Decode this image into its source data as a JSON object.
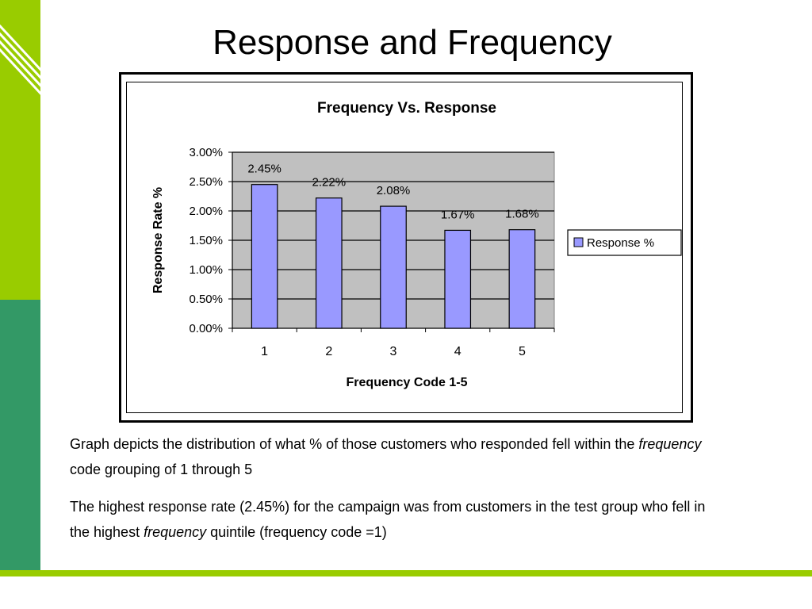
{
  "slide": {
    "title": "Response and Frequency",
    "paragraphs": [
      {
        "before": "Graph depicts the distribution of what % of those customers who responded fell within the ",
        "italic": "frequency",
        "after": " code grouping of 1 through 5"
      },
      {
        "before": "The highest response rate (2.45%) for the campaign was from customers in the test group who fell in the highest ",
        "italic": "frequency",
        "after": " quintile (frequency code =1)"
      }
    ]
  },
  "theme": {
    "side_green": "#99cc00",
    "side_teal": "#339966",
    "plot_bg": "#c0c0c0",
    "bar_fill": "#9999ff"
  },
  "chart_data": {
    "type": "bar",
    "title": "Frequency Vs. Response",
    "xlabel": "Frequency Code 1-5",
    "ylabel": "Response Rate %",
    "categories": [
      "1",
      "2",
      "3",
      "4",
      "5"
    ],
    "series": [
      {
        "name": "Response %",
        "values": [
          2.45,
          2.22,
          2.08,
          1.67,
          1.68
        ],
        "color": "#9999ff"
      }
    ],
    "data_labels": [
      "2.45%",
      "2.22%",
      "2.08%",
      "1.67%",
      "1.68%"
    ],
    "ylim": [
      0,
      3.0
    ],
    "y_ticks": [
      "0.00%",
      "0.50%",
      "1.00%",
      "1.50%",
      "2.00%",
      "2.50%",
      "3.00%"
    ],
    "gridlines": true,
    "legend": "right"
  }
}
